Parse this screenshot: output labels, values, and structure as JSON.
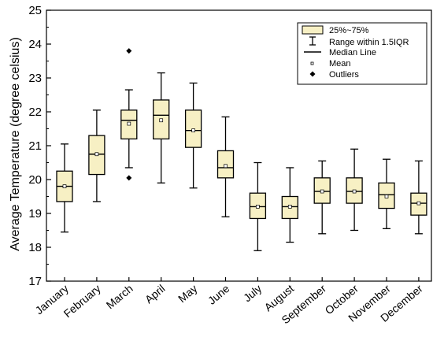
{
  "chart_data": {
    "type": "box",
    "title": "",
    "xlabel": "",
    "ylabel": "Average Temperature (degree celsius)",
    "ylim": [
      17,
      25
    ],
    "yticks": [
      "17",
      "18",
      "19",
      "20",
      "21",
      "22",
      "23",
      "24",
      "25"
    ],
    "grid": false,
    "legend_position": "top-right",
    "box_color": "#f7f0c4",
    "categories": [
      "January",
      "February",
      "March",
      "April",
      "May",
      "June",
      "July",
      "August",
      "September",
      "October",
      "November",
      "December"
    ],
    "boxes": [
      {
        "min": 18.45,
        "q1": 19.35,
        "median": 19.8,
        "q3": 20.25,
        "max": 21.05,
        "mean": 19.8,
        "outliers": []
      },
      {
        "min": 19.35,
        "q1": 20.15,
        "median": 20.75,
        "q3": 21.3,
        "max": 22.05,
        "mean": 20.75,
        "outliers": []
      },
      {
        "min": 20.35,
        "q1": 21.2,
        "median": 21.75,
        "q3": 22.05,
        "max": 22.65,
        "mean": 21.65,
        "outliers": [
          23.8,
          20.05
        ]
      },
      {
        "min": 19.9,
        "q1": 21.2,
        "median": 21.9,
        "q3": 22.35,
        "max": 23.15,
        "mean": 21.75,
        "outliers": []
      },
      {
        "min": 19.75,
        "q1": 20.95,
        "median": 21.45,
        "q3": 22.05,
        "max": 22.85,
        "mean": 21.45,
        "outliers": []
      },
      {
        "min": 18.9,
        "q1": 20.05,
        "median": 20.35,
        "q3": 20.85,
        "max": 21.85,
        "mean": 20.4,
        "outliers": []
      },
      {
        "min": 17.9,
        "q1": 18.85,
        "median": 19.2,
        "q3": 19.6,
        "max": 20.5,
        "mean": 19.2,
        "outliers": []
      },
      {
        "min": 18.15,
        "q1": 18.85,
        "median": 19.2,
        "q3": 19.5,
        "max": 20.35,
        "mean": 19.2,
        "outliers": []
      },
      {
        "min": 18.4,
        "q1": 19.3,
        "median": 19.65,
        "q3": 20.05,
        "max": 20.55,
        "mean": 19.65,
        "outliers": []
      },
      {
        "min": 18.5,
        "q1": 19.3,
        "median": 19.65,
        "q3": 20.05,
        "max": 20.9,
        "mean": 19.65,
        "outliers": []
      },
      {
        "min": 18.55,
        "q1": 19.15,
        "median": 19.55,
        "q3": 19.9,
        "max": 20.6,
        "mean": 19.5,
        "outliers": []
      },
      {
        "min": 18.4,
        "q1": 18.95,
        "median": 19.3,
        "q3": 19.6,
        "max": 20.55,
        "mean": 19.3,
        "outliers": []
      }
    ],
    "legend": [
      {
        "key": "box",
        "label": "25%~75%"
      },
      {
        "key": "whisker",
        "label": "Range within 1.5IQR"
      },
      {
        "key": "median",
        "label": "Median Line"
      },
      {
        "key": "mean",
        "label": "Mean"
      },
      {
        "key": "outlier",
        "label": "Outliers"
      }
    ]
  }
}
